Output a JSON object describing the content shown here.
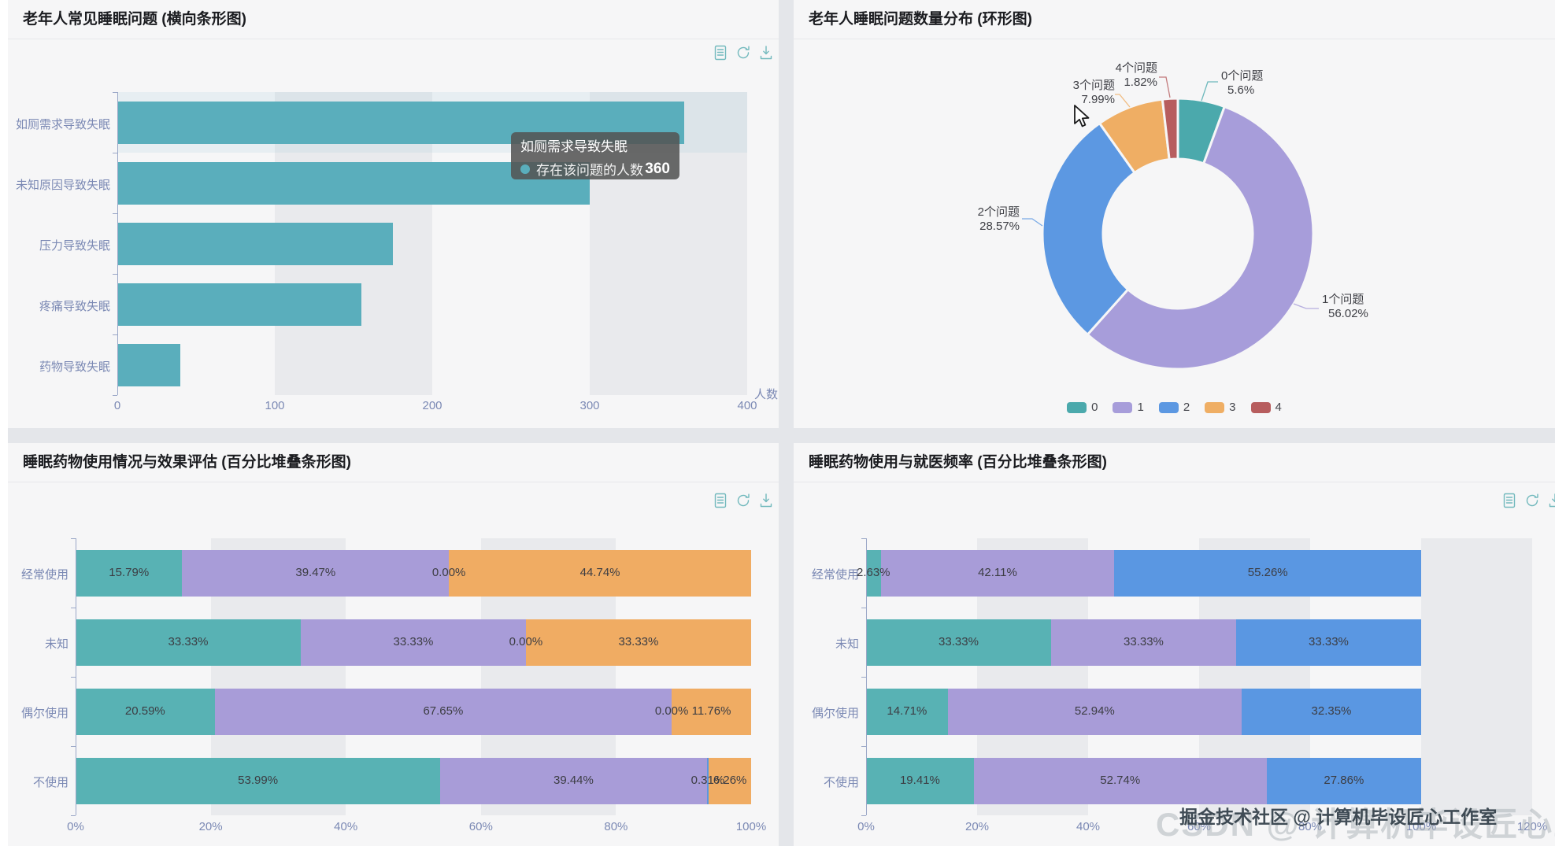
{
  "panels": {
    "p1": {
      "title": "老年人常见睡眠问题 (横向条形图)"
    },
    "p2": {
      "title": "老年人睡眠问题数量分布 (环形图)"
    },
    "p3": {
      "title": "睡眠药物使用情况与效果评估 (百分比堆叠条形图)"
    },
    "p4": {
      "title": "睡眠药物使用与就医频率 (百分比堆叠条形图)"
    }
  },
  "toolbox": {
    "icons": [
      "data-view-icon",
      "refresh-icon",
      "download-icon"
    ]
  },
  "watermark": {
    "ghost": "CSDN @ 计算机毕设匠心工作室",
    "main": "掘金技术社区 @ 计算机毕设匠心工作室"
  },
  "colors": {
    "bar_teal": "#5aaebc",
    "stack_teal": "#58b2b4",
    "purple": "#a89cd8",
    "blue": "#5a97e2",
    "orange": "#f0ac63",
    "red": "#b75d5e",
    "axis_text": "#7b89b4",
    "axis_line": "#9aa7c7"
  },
  "chart_data": [
    {
      "id": "elderly-common-sleep-problems",
      "type": "bar",
      "orientation": "horizontal",
      "title": "老年人常见睡眠问题 (横向条形图)",
      "categories": [
        "如厕需求导致失眠",
        "未知原因导致失眠",
        "压力导致失眠",
        "疼痛导致失眠",
        "药物导致失眠"
      ],
      "series": [
        {
          "name": "存在该问题的人数",
          "color": "#5aaebc",
          "values": [
            360,
            300,
            175,
            155,
            40
          ]
        }
      ],
      "xlim": [
        0,
        400
      ],
      "xticks": [
        0,
        100,
        200,
        300,
        400
      ],
      "xlabel": "人数",
      "grid": "split-area-alternating",
      "tooltip": {
        "category": "如厕需求导致失眠",
        "series": "存在该问题的人数",
        "value": "360"
      }
    },
    {
      "id": "sleep-problem-count-distribution",
      "type": "pie",
      "donut": true,
      "title": "老年人睡眠问题数量分布 (环形图)",
      "labels": [
        "0个问题",
        "1个问题",
        "2个问题",
        "3个问题",
        "4个问题"
      ],
      "values": [
        5.6,
        56.02,
        28.57,
        7.99,
        1.82
      ],
      "pct_labels": [
        "5.6%",
        "56.02%",
        "28.57%",
        "7.99%",
        "1.82%"
      ],
      "legend": [
        "0",
        "1",
        "2",
        "3",
        "4"
      ],
      "legend_position": "bottom-center",
      "colors": [
        "#4ba9ac",
        "#a79dda",
        "#5c98e2",
        "#efae64",
        "#b75d5e"
      ]
    },
    {
      "id": "medication-use-effect-evaluation",
      "type": "bar",
      "stacked": "percent",
      "orientation": "horizontal",
      "title": "睡眠药物使用情况与效果评估 (百分比堆叠条形图)",
      "categories": [
        "经常使用",
        "未知",
        "偶尔使用",
        "不使用"
      ],
      "series": [
        {
          "name": "series-teal",
          "color": "#58b2b4",
          "values": [
            15.79,
            33.33,
            20.59,
            53.99
          ]
        },
        {
          "name": "series-purple",
          "color": "#a89cd8",
          "values": [
            39.47,
            33.33,
            67.65,
            39.44
          ]
        },
        {
          "name": "series-blue",
          "color": "#5a97e2",
          "values": [
            0.0,
            0.0,
            0.0,
            0.31
          ]
        },
        {
          "name": "series-orange",
          "color": "#f0ac63",
          "values": [
            44.74,
            33.33,
            11.76,
            6.26
          ]
        }
      ],
      "xticks": [
        "0%",
        "20%",
        "40%",
        "60%",
        "80%",
        "100%"
      ],
      "grid": "split-area-alternating"
    },
    {
      "id": "medication-use-visit-frequency",
      "type": "bar",
      "stacked": "percent",
      "orientation": "horizontal",
      "title": "睡眠药物使用与就医频率 (百分比堆叠条形图)",
      "categories": [
        "经常使用",
        "未知",
        "偶尔使用",
        "不使用"
      ],
      "series": [
        {
          "name": "series-teal",
          "color": "#58b2b4",
          "values": [
            2.63,
            33.33,
            14.71,
            19.41
          ]
        },
        {
          "name": "series-purple",
          "color": "#a89cd8",
          "values": [
            42.11,
            33.33,
            52.94,
            52.74
          ]
        },
        {
          "name": "series-blue",
          "color": "#5a97e2",
          "values": [
            55.26,
            33.33,
            32.35,
            27.86
          ]
        }
      ],
      "xticks": [
        "0%",
        "20%",
        "40%",
        "60%",
        "80%",
        "100%",
        "120%"
      ],
      "grid": "split-area-alternating"
    }
  ]
}
